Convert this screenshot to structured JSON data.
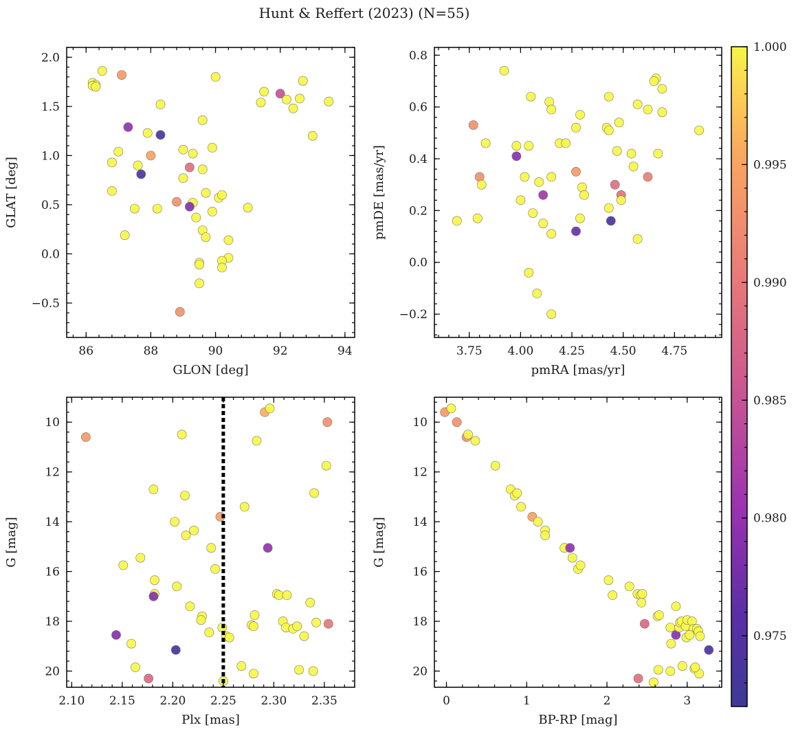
{
  "title": "Hunt & Reffert (2023) (N=55)",
  "colorbar": {
    "min": 0.972,
    "max": 1.0,
    "ticks": [
      0.975,
      0.98,
      0.985,
      0.99,
      0.995,
      1.0
    ],
    "tick_labels": [
      "0.975",
      "0.980",
      "0.985",
      "0.990",
      "0.995",
      "1.000"
    ],
    "colormap": "plasma"
  },
  "chart_data": [
    {
      "type": "scatter",
      "xlabel": "GLON [deg]",
      "ylabel": "GLAT [deg]",
      "xlim": [
        85.4,
        94.3
      ],
      "ylim": [
        -0.85,
        2.1
      ],
      "xticks": [
        86,
        88,
        90,
        92,
        94
      ],
      "xtick_labels": [
        "86",
        "88",
        "90",
        "92",
        "94"
      ],
      "yticks": [
        -0.5,
        0.0,
        0.5,
        1.0,
        1.5,
        2.0
      ],
      "ytick_labels": [
        "−0.5",
        "0.0",
        "0.5",
        "1.0",
        "1.5",
        "2.0"
      ],
      "y_inverted": false,
      "points": [
        [
          86.5,
          1.86,
          1
        ],
        [
          86.2,
          1.74,
          1
        ],
        [
          86.3,
          1.72,
          1
        ],
        [
          86.2,
          1.71,
          1
        ],
        [
          86.3,
          1.7,
          1
        ],
        [
          87.1,
          1.82,
          0.994
        ],
        [
          87.3,
          1.29,
          0.98
        ],
        [
          87.9,
          1.23,
          1
        ],
        [
          88.3,
          1.21,
          0.974
        ],
        [
          88.3,
          1.52,
          1
        ],
        [
          87.0,
          1.04,
          1
        ],
        [
          86.8,
          0.93,
          1
        ],
        [
          87.6,
          0.9,
          1
        ],
        [
          88.0,
          1.0,
          0.995
        ],
        [
          87.7,
          0.81,
          0.974
        ],
        [
          86.8,
          0.64,
          1
        ],
        [
          87.5,
          0.46,
          1
        ],
        [
          88.2,
          0.46,
          1
        ],
        [
          88.8,
          0.53,
          0.993
        ],
        [
          87.2,
          0.19,
          1
        ],
        [
          89.0,
          1.06,
          1
        ],
        [
          89.3,
          1.02,
          1
        ],
        [
          89.0,
          0.77,
          1
        ],
        [
          89.2,
          0.88,
          0.989
        ],
        [
          89.3,
          0.52,
          1
        ],
        [
          89.2,
          0.48,
          0.979
        ],
        [
          89.4,
          0.37,
          1
        ],
        [
          89.6,
          0.24,
          1
        ],
        [
          89.7,
          0.17,
          1
        ],
        [
          89.6,
          1.36,
          1
        ],
        [
          89.6,
          0.86,
          1
        ],
        [
          89.7,
          0.62,
          1
        ],
        [
          89.9,
          0.43,
          1
        ],
        [
          89.9,
          1.08,
          1
        ],
        [
          90.0,
          1.8,
          1
        ],
        [
          90.1,
          0.57,
          1
        ],
        [
          90.2,
          0.6,
          1
        ],
        [
          90.4,
          0.14,
          1
        ],
        [
          90.4,
          -0.04,
          1
        ],
        [
          90.2,
          -0.07,
          1
        ],
        [
          90.2,
          -0.14,
          1
        ],
        [
          89.5,
          -0.09,
          1
        ],
        [
          89.5,
          -0.11,
          1
        ],
        [
          89.5,
          -0.3,
          1
        ],
        [
          88.9,
          -0.59,
          0.993
        ],
        [
          91.0,
          0.47,
          1
        ],
        [
          91.4,
          1.54,
          1
        ],
        [
          91.5,
          1.65,
          1
        ],
        [
          92.0,
          1.63,
          0.985
        ],
        [
          92.2,
          1.57,
          1
        ],
        [
          92.4,
          1.48,
          1
        ],
        [
          92.6,
          1.58,
          1
        ],
        [
          92.7,
          1.76,
          1
        ],
        [
          93.0,
          1.2,
          1
        ],
        [
          93.5,
          1.55,
          1
        ]
      ]
    },
    {
      "type": "scatter",
      "xlabel": "pmRA [mas/yr]",
      "ylabel": "pmDE [mas/yr]",
      "xlim": [
        3.58,
        4.98
      ],
      "ylim": [
        -0.29,
        0.83
      ],
      "xticks": [
        3.75,
        4.0,
        4.25,
        4.5,
        4.75
      ],
      "xtick_labels": [
        "3.75",
        "4.00",
        "4.25",
        "4.50",
        "4.75"
      ],
      "yticks": [
        -0.2,
        0.0,
        0.2,
        0.4,
        0.6,
        0.8
      ],
      "ytick_labels": [
        "−0.2",
        "0.0",
        "0.2",
        "0.4",
        "0.6",
        "0.8"
      ],
      "y_inverted": false,
      "points": [
        [
          3.92,
          0.74,
          1
        ],
        [
          4.05,
          0.64,
          1
        ],
        [
          4.14,
          0.62,
          1
        ],
        [
          4.15,
          0.59,
          1
        ],
        [
          4.29,
          0.57,
          1
        ],
        [
          4.27,
          0.52,
          1
        ],
        [
          4.42,
          0.52,
          1
        ],
        [
          4.43,
          0.51,
          1
        ],
        [
          4.43,
          0.64,
          1
        ],
        [
          4.48,
          0.54,
          1
        ],
        [
          4.57,
          0.61,
          1
        ],
        [
          4.62,
          0.59,
          1
        ],
        [
          4.66,
          0.71,
          1
        ],
        [
          4.65,
          0.7,
          1
        ],
        [
          4.69,
          0.67,
          1
        ],
        [
          4.69,
          0.58,
          1
        ],
        [
          4.87,
          0.51,
          1
        ],
        [
          3.77,
          0.53,
          0.993
        ],
        [
          3.83,
          0.46,
          1
        ],
        [
          3.98,
          0.45,
          1
        ],
        [
          4.04,
          0.45,
          1
        ],
        [
          4.19,
          0.46,
          1
        ],
        [
          4.22,
          0.46,
          1
        ],
        [
          3.98,
          0.41,
          0.979
        ],
        [
          3.8,
          0.33,
          0.993
        ],
        [
          3.81,
          0.3,
          1
        ],
        [
          4.02,
          0.33,
          1
        ],
        [
          4.09,
          0.31,
          1
        ],
        [
          4.15,
          0.33,
          1
        ],
        [
          4.27,
          0.35,
          0.994
        ],
        [
          4.3,
          0.29,
          1
        ],
        [
          4.31,
          0.26,
          1
        ],
        [
          4.47,
          0.43,
          1
        ],
        [
          4.54,
          0.42,
          1
        ],
        [
          4.55,
          0.37,
          1
        ],
        [
          4.46,
          0.3,
          0.989
        ],
        [
          4.62,
          0.33,
          0.991
        ],
        [
          4.67,
          0.42,
          1
        ],
        [
          4.49,
          0.26,
          0.989
        ],
        [
          4.49,
          0.24,
          1
        ],
        [
          4.0,
          0.24,
          1
        ],
        [
          4.11,
          0.26,
          0.981
        ],
        [
          3.69,
          0.16,
          1
        ],
        [
          3.79,
          0.17,
          1
        ],
        [
          4.06,
          0.19,
          1
        ],
        [
          4.11,
          0.15,
          1
        ],
        [
          4.29,
          0.17,
          1
        ],
        [
          4.43,
          0.21,
          1
        ],
        [
          4.44,
          0.16,
          0.974
        ],
        [
          4.27,
          0.12,
          0.977
        ],
        [
          4.15,
          0.11,
          1
        ],
        [
          4.57,
          0.09,
          1
        ],
        [
          4.04,
          -0.04,
          1
        ],
        [
          4.08,
          -0.12,
          1
        ],
        [
          4.15,
          -0.2,
          1
        ]
      ]
    },
    {
      "type": "scatter",
      "xlabel": "Plx [mas]",
      "ylabel": "G [mag]",
      "xlim": [
        2.095,
        2.38
      ],
      "ylim": [
        9.0,
        20.65
      ],
      "xticks": [
        2.1,
        2.15,
        2.2,
        2.25,
        2.3,
        2.35
      ],
      "xtick_labels": [
        "2.10",
        "2.15",
        "2.20",
        "2.25",
        "2.30",
        "2.35"
      ],
      "yticks": [
        10,
        12,
        14,
        16,
        18,
        20
      ],
      "ytick_labels": [
        "10",
        "12",
        "14",
        "16",
        "18",
        "20"
      ],
      "y_inverted": true,
      "vline": 2.25,
      "points": [
        [
          2.114,
          10.6,
          0.994
        ],
        [
          2.209,
          10.5,
          1
        ],
        [
          2.283,
          10.75,
          1
        ],
        [
          2.291,
          9.6,
          0.996
        ],
        [
          2.296,
          9.45,
          1
        ],
        [
          2.353,
          10.0,
          0.993
        ],
        [
          2.352,
          11.75,
          1
        ],
        [
          2.181,
          12.7,
          1
        ],
        [
          2.212,
          12.95,
          1
        ],
        [
          2.271,
          13.4,
          1
        ],
        [
          2.34,
          12.85,
          1
        ],
        [
          2.202,
          14.0,
          1
        ],
        [
          2.213,
          14.55,
          1
        ],
        [
          2.221,
          14.35,
          1
        ],
        [
          2.247,
          13.8,
          0.995
        ],
        [
          2.294,
          15.05,
          0.98
        ],
        [
          2.168,
          15.45,
          1
        ],
        [
          2.151,
          15.75,
          1
        ],
        [
          2.238,
          15.05,
          1
        ],
        [
          2.242,
          15.9,
          1
        ],
        [
          2.182,
          16.35,
          1
        ],
        [
          2.204,
          16.6,
          1
        ],
        [
          2.182,
          16.9,
          1
        ],
        [
          2.181,
          17.0,
          0.979
        ],
        [
          2.217,
          17.4,
          1
        ],
        [
          2.229,
          17.8,
          1
        ],
        [
          2.228,
          17.95,
          1
        ],
        [
          2.281,
          17.75,
          1
        ],
        [
          2.278,
          18.15,
          1
        ],
        [
          2.28,
          18.2,
          1
        ],
        [
          2.303,
          16.9,
          1
        ],
        [
          2.305,
          16.95,
          1
        ],
        [
          2.313,
          16.95,
          1
        ],
        [
          2.336,
          17.25,
          1
        ],
        [
          2.309,
          18.0,
          1
        ],
        [
          2.312,
          18.25,
          1
        ],
        [
          2.319,
          18.3,
          1
        ],
        [
          2.323,
          18.2,
          1
        ],
        [
          2.342,
          18.05,
          1
        ],
        [
          2.33,
          18.6,
          1
        ],
        [
          2.354,
          18.1,
          0.99
        ],
        [
          2.144,
          18.55,
          0.979
        ],
        [
          2.159,
          18.9,
          1
        ],
        [
          2.203,
          19.15,
          0.974
        ],
        [
          2.236,
          18.45,
          1
        ],
        [
          2.249,
          18.25,
          1
        ],
        [
          2.253,
          18.6,
          1
        ],
        [
          2.256,
          18.65,
          1
        ],
        [
          2.163,
          19.85,
          1
        ],
        [
          2.176,
          20.3,
          0.988
        ],
        [
          2.25,
          20.4,
          1
        ],
        [
          2.268,
          19.8,
          1
        ],
        [
          2.28,
          20.1,
          1
        ],
        [
          2.325,
          19.95,
          1
        ],
        [
          2.339,
          20.0,
          1
        ]
      ]
    },
    {
      "type": "scatter",
      "xlabel": "BP-RP [mag]",
      "ylabel": "G [mag]",
      "xlim": [
        -0.15,
        3.43
      ],
      "ylim": [
        9.0,
        20.65
      ],
      "xticks": [
        0,
        1,
        2,
        3
      ],
      "xtick_labels": [
        "0",
        "1",
        "2",
        "3"
      ],
      "yticks": [
        10,
        12,
        14,
        16,
        18,
        20
      ],
      "ytick_labels": [
        "10",
        "12",
        "14",
        "16",
        "18",
        "20"
      ],
      "y_inverted": true,
      "points": [
        [
          -0.02,
          9.6,
          0.994
        ],
        [
          0.06,
          9.45,
          1
        ],
        [
          0.13,
          10.0,
          0.993
        ],
        [
          0.25,
          10.6,
          0.993
        ],
        [
          0.27,
          10.5,
          1
        ],
        [
          0.36,
          10.75,
          1
        ],
        [
          0.61,
          11.75,
          1
        ],
        [
          0.8,
          12.7,
          1
        ],
        [
          0.85,
          12.95,
          1
        ],
        [
          0.88,
          12.85,
          1
        ],
        [
          0.93,
          13.4,
          1
        ],
        [
          1.07,
          13.8,
          0.995
        ],
        [
          1.14,
          14.0,
          1
        ],
        [
          1.23,
          14.35,
          1
        ],
        [
          1.23,
          14.55,
          1
        ],
        [
          1.47,
          15.05,
          1
        ],
        [
          1.54,
          15.05,
          0.98
        ],
        [
          1.57,
          15.45,
          1
        ],
        [
          1.64,
          15.9,
          1
        ],
        [
          1.67,
          15.75,
          1
        ],
        [
          2.02,
          16.35,
          1
        ],
        [
          2.07,
          16.95,
          1
        ],
        [
          2.28,
          16.6,
          1
        ],
        [
          2.38,
          16.9,
          1
        ],
        [
          2.42,
          16.95,
          1
        ],
        [
          2.44,
          16.9,
          1
        ],
        [
          2.43,
          17.25,
          1
        ],
        [
          2.47,
          18.1,
          0.988
        ],
        [
          2.63,
          17.8,
          1
        ],
        [
          2.65,
          17.75,
          1
        ],
        [
          2.79,
          18.25,
          1
        ],
        [
          2.8,
          18.9,
          1
        ],
        [
          2.86,
          17.4,
          1
        ],
        [
          2.86,
          18.55,
          0.979
        ],
        [
          2.9,
          18.25,
          1
        ],
        [
          2.91,
          18.05,
          1
        ],
        [
          2.93,
          18.0,
          1
        ],
        [
          2.98,
          18.2,
          1
        ],
        [
          3.0,
          17.95,
          1
        ],
        [
          3.06,
          18.0,
          1
        ],
        [
          3.08,
          18.3,
          1
        ],
        [
          3.12,
          18.3,
          1
        ],
        [
          2.99,
          18.65,
          1
        ],
        [
          3.03,
          18.55,
          1
        ],
        [
          3.14,
          18.4,
          1
        ],
        [
          3.16,
          18.6,
          1
        ],
        [
          3.27,
          19.15,
          0.974
        ],
        [
          2.39,
          20.3,
          0.989
        ],
        [
          2.58,
          20.45,
          1
        ],
        [
          2.64,
          19.95,
          1
        ],
        [
          2.79,
          20.0,
          1
        ],
        [
          2.94,
          19.8,
          1
        ],
        [
          3.09,
          19.9,
          1
        ],
        [
          3.15,
          20.1,
          1
        ],
        [
          3.1,
          19.85,
          1
        ]
      ]
    }
  ]
}
